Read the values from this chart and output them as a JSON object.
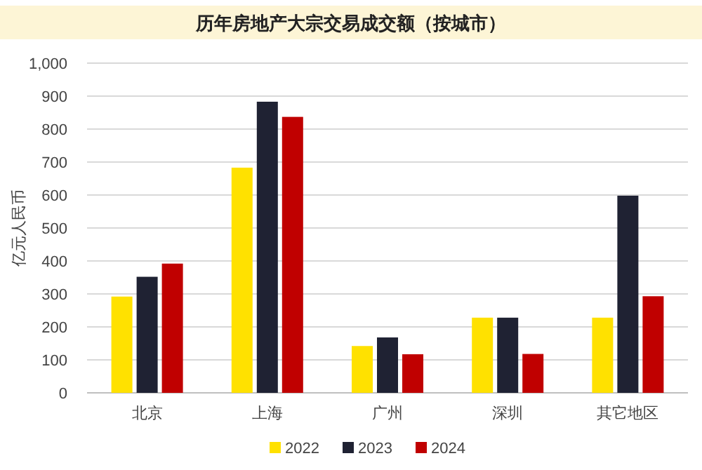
{
  "chart_data": {
    "type": "bar",
    "title": "历年房地产大宗交易成交额（按城市）",
    "ylabel": "亿元人民币",
    "categories": [
      "北京",
      "上海",
      "广州",
      "深圳",
      "其它地区"
    ],
    "series": [
      {
        "name": "2022",
        "color": "#ffe100",
        "values": [
          292,
          683,
          142,
          228,
          228
        ]
      },
      {
        "name": "2023",
        "color": "#1f2233",
        "values": [
          352,
          883,
          168,
          228,
          598
        ]
      },
      {
        "name": "2024",
        "color": "#c00000",
        "values": [
          392,
          837,
          117,
          118,
          293
        ]
      }
    ],
    "ylim": [
      0,
      1000
    ],
    "yticks": [
      0,
      100,
      200,
      300,
      400,
      500,
      600,
      700,
      800,
      900,
      {
        "value": 1000,
        "label": "1,000"
      }
    ],
    "grid": "y",
    "legend": "bottom"
  }
}
